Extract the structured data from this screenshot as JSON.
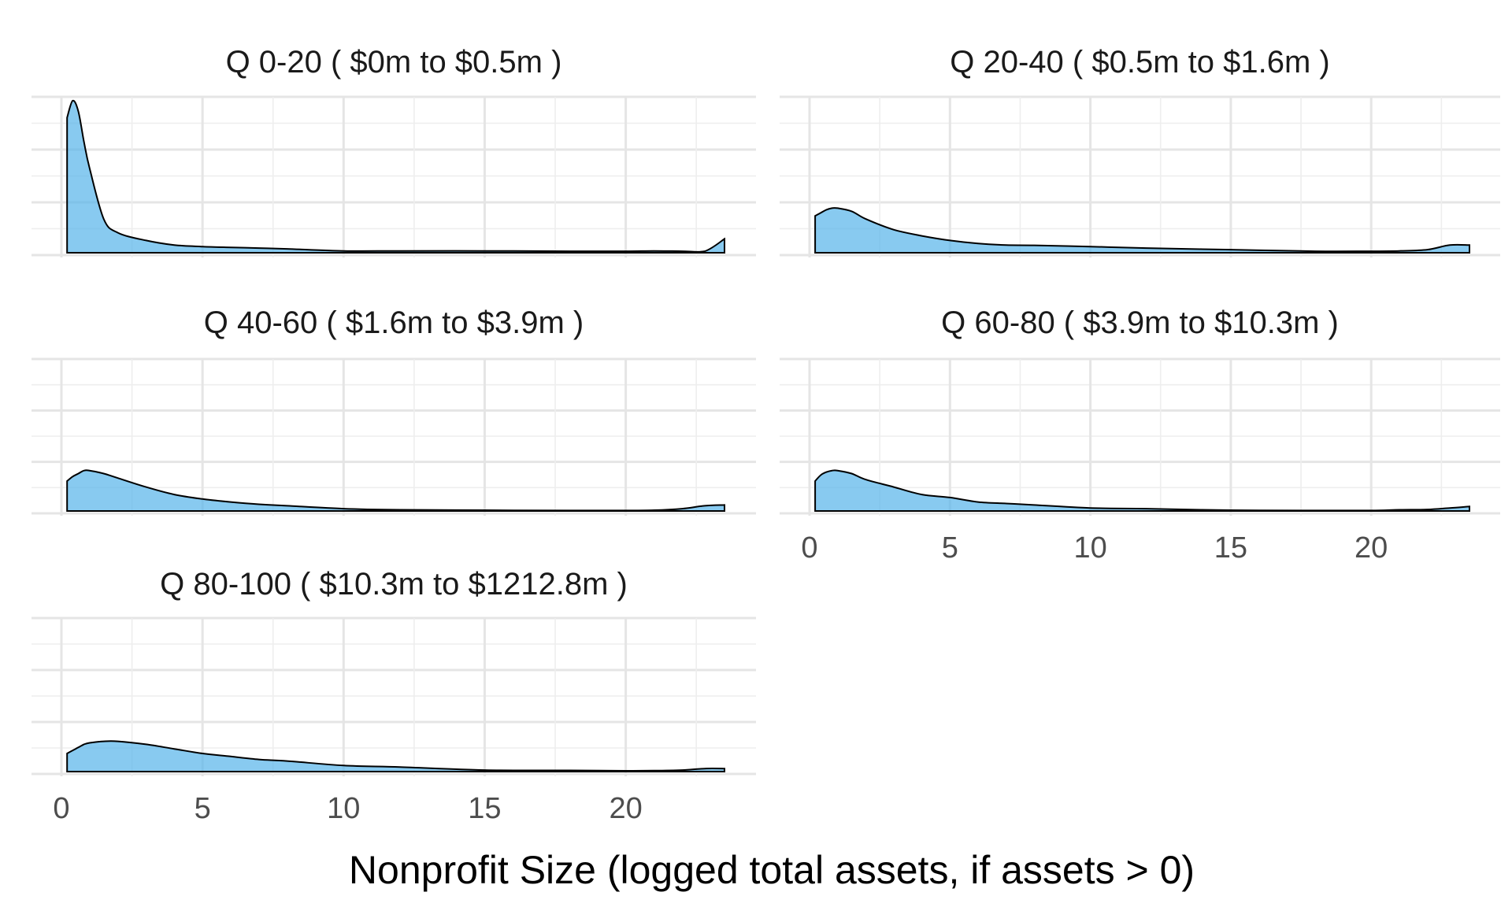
{
  "chart_data": {
    "type": "area",
    "subtype": "density",
    "xlabel": "Nonprofit Size (logged total assets, if assets > 0)",
    "ylabel": "",
    "xlim": [
      0,
      23.5
    ],
    "x_ticks": [
      0,
      5,
      10,
      15,
      20
    ],
    "y_tick_labels_shown": false,
    "grid": true,
    "legend": "none",
    "fill_color": "#56b4e9",
    "fill_opacity": 0.7,
    "line_color": "#000000",
    "facet_layout": "wrap-2-columns",
    "x_values": [
      0.2,
      0.4,
      0.6,
      0.8,
      1.0,
      1.5,
      2.0,
      3.0,
      4.0,
      5.0,
      6.0,
      7.0,
      8.0,
      10.0,
      12.0,
      15.0,
      18.0,
      20.0,
      21.0,
      22.0,
      22.8,
      23.5
    ],
    "facets": [
      {
        "title": "Q 0-20   ( $0m to $0.5m )",
        "density": [
          0.88,
          0.99,
          0.92,
          0.72,
          0.55,
          0.22,
          0.13,
          0.08,
          0.05,
          0.04,
          0.035,
          0.03,
          0.025,
          0.012,
          0.012,
          0.012,
          0.01,
          0.01,
          0.012,
          0.01,
          0.01,
          0.09
        ]
      },
      {
        "title": "Q 20-40   ( $0.5m to $1.6m )",
        "density": [
          0.24,
          0.26,
          0.28,
          0.29,
          0.29,
          0.27,
          0.22,
          0.15,
          0.11,
          0.08,
          0.06,
          0.05,
          0.048,
          0.04,
          0.03,
          0.02,
          0.01,
          0.01,
          0.012,
          0.02,
          0.05,
          0.05
        ]
      },
      {
        "title": "Q 40-60   ( $1.6m to $3.9m )",
        "density": [
          0.2,
          0.23,
          0.25,
          0.27,
          0.27,
          0.25,
          0.22,
          0.16,
          0.11,
          0.08,
          0.06,
          0.045,
          0.035,
          0.015,
          0.008,
          0.005,
          0.003,
          0.003,
          0.005,
          0.015,
          0.035,
          0.04
        ]
      },
      {
        "title": "Q 60-80   ( $3.9m to $10.3m )",
        "density": [
          0.2,
          0.24,
          0.26,
          0.27,
          0.27,
          0.25,
          0.21,
          0.16,
          0.11,
          0.09,
          0.06,
          0.05,
          0.04,
          0.02,
          0.015,
          0.005,
          0.003,
          0.003,
          0.008,
          0.01,
          0.02,
          0.03
        ]
      },
      {
        "title": "Q 80-100   ( $10.3m to $1212.8m )",
        "density": [
          0.12,
          0.14,
          0.16,
          0.18,
          0.19,
          0.2,
          0.2,
          0.18,
          0.15,
          0.12,
          0.1,
          0.08,
          0.07,
          0.04,
          0.03,
          0.01,
          0.008,
          0.005,
          0.006,
          0.01,
          0.02,
          0.02
        ]
      }
    ]
  }
}
